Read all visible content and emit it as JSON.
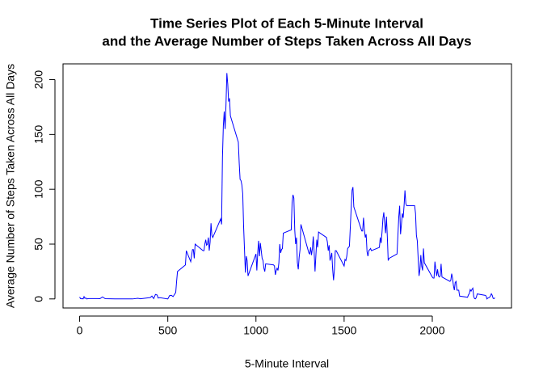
{
  "chart_data": {
    "type": "line",
    "title_lines": [
      "Time Series Plot of Each 5-Minute Interval",
      "and the Average Number of Steps Taken Across All Days"
    ],
    "x_label": "5-Minute Interval",
    "y_label": "Average Number of Steps Taken Across All Days",
    "xlim": [
      -94.2,
      2449.2
    ],
    "ylim": [
      -8.25,
      214.4
    ],
    "xticks": [
      0,
      500,
      1000,
      1500,
      2000
    ],
    "yticks": [
      0,
      50,
      100,
      150,
      200
    ],
    "x": [
      0,
      5,
      10,
      15,
      20,
      25,
      30,
      35,
      40,
      50,
      100,
      115,
      130,
      145,
      200,
      230,
      300,
      330,
      345,
      400,
      410,
      420,
      430,
      440,
      445,
      455,
      500,
      510,
      520,
      530,
      545,
      550,
      555,
      600,
      605,
      610,
      615,
      620,
      625,
      630,
      640,
      645,
      650,
      655,
      700,
      705,
      710,
      715,
      720,
      725,
      730,
      735,
      740,
      745,
      750,
      755,
      800,
      805,
      810,
      815,
      820,
      825,
      830,
      835,
      840,
      845,
      850,
      855,
      900,
      905,
      910,
      915,
      920,
      925,
      930,
      935,
      940,
      945,
      950,
      955,
      1000,
      1005,
      1010,
      1015,
      1020,
      1025,
      1030,
      1035,
      1040,
      1045,
      1050,
      1055,
      1100,
      1105,
      1110,
      1115,
      1120,
      1125,
      1130,
      1135,
      1140,
      1145,
      1150,
      1155,
      1200,
      1205,
      1210,
      1215,
      1220,
      1225,
      1230,
      1235,
      1240,
      1245,
      1250,
      1255,
      1300,
      1305,
      1310,
      1315,
      1320,
      1325,
      1330,
      1335,
      1340,
      1345,
      1350,
      1355,
      1400,
      1405,
      1410,
      1415,
      1420,
      1425,
      1430,
      1435,
      1440,
      1445,
      1450,
      1455,
      1500,
      1505,
      1510,
      1515,
      1520,
      1525,
      1530,
      1535,
      1540,
      1545,
      1550,
      1555,
      1600,
      1605,
      1610,
      1615,
      1620,
      1625,
      1630,
      1635,
      1640,
      1645,
      1650,
      1655,
      1700,
      1705,
      1710,
      1715,
      1720,
      1725,
      1730,
      1735,
      1740,
      1745,
      1750,
      1755,
      1800,
      1805,
      1810,
      1815,
      1820,
      1825,
      1830,
      1835,
      1840,
      1845,
      1850,
      1855,
      1900,
      1905,
      1910,
      1915,
      1920,
      1925,
      1930,
      1935,
      1940,
      1945,
      1950,
      1955,
      2000,
      2005,
      2010,
      2015,
      2020,
      2025,
      2030,
      2035,
      2040,
      2045,
      2050,
      2055,
      2100,
      2105,
      2110,
      2115,
      2120,
      2125,
      2130,
      2135,
      2140,
      2145,
      2150,
      2155,
      2200,
      2205,
      2210,
      2215,
      2220,
      2225,
      2230,
      2235,
      2240,
      2245,
      2250,
      2255,
      2300,
      2305,
      2310,
      2315,
      2320,
      2325,
      2330,
      2335,
      2340,
      2345,
      2350,
      2355
    ],
    "series": [
      {
        "color": "#0000ff",
        "values": [
          1.7,
          0.3,
          0.1,
          0.2,
          0.1,
          2.1,
          0.5,
          0.9,
          0,
          0.3,
          0.3,
          0.2,
          1.8,
          0.2,
          0,
          0,
          0,
          0.6,
          0.1,
          1.2,
          2.6,
          0.3,
          4.1,
          3.5,
          0.8,
          1.1,
          0,
          3,
          3.3,
          2.1,
          5.9,
          16,
          25,
          31,
          44,
          42,
          40,
          38,
          36,
          34,
          45,
          45,
          37,
          50,
          44,
          44,
          50,
          54,
          49,
          50,
          56,
          44,
          52,
          69,
          58,
          56,
          73,
          68,
          129,
          158,
          171,
          155,
          177,
          206,
          196,
          180,
          183,
          167,
          143,
          124,
          109,
          108,
          104,
          96,
          66,
          45,
          24,
          39,
          35,
          21,
          41,
          26,
          42,
          53,
          39,
          51,
          44,
          37,
          35,
          28,
          25,
          32,
          31,
          30,
          22,
          26,
          28,
          26,
          33,
          50,
          42,
          45,
          46,
          60,
          63,
          88,
          95,
          92,
          63,
          50,
          56,
          33,
          27,
          38,
          45,
          68,
          42,
          41,
          47,
          40,
          46,
          57,
          43,
          25,
          40,
          54,
          47,
          61,
          56,
          52,
          44,
          49,
          35,
          38,
          42,
          27,
          17,
          27,
          44,
          44,
          30,
          36,
          35,
          39,
          46,
          47,
          48,
          65,
          83,
          99,
          102,
          84,
          62,
          62,
          74,
          63,
          56,
          59,
          43,
          39,
          44,
          45,
          46,
          44,
          47,
          56,
          51,
          61,
          73,
          79,
          69,
          60,
          75,
          57,
          35,
          37,
          41,
          58,
          75,
          85,
          59,
          68,
          78,
          74,
          85,
          99,
          87,
          85,
          85,
          78,
          58,
          53,
          37,
          21,
          27,
          40,
          30,
          26,
          46,
          33,
          20,
          19,
          19,
          34,
          27,
          21,
          27,
          21,
          20,
          21,
          32,
          20,
          16,
          17,
          23,
          19,
          12,
          8,
          15,
          16,
          8,
          8,
          8,
          2.6,
          1.5,
          3.7,
          4.8,
          8.5,
          7.1,
          8.7,
          9.8,
          2.2,
          0.3,
          0.1,
          1.6,
          4.6,
          3.3,
          2.8,
          0,
          0.8,
          1,
          1.6,
          2.6,
          4.7,
          3.3,
          0.6,
          0.2,
          1.1
        ]
      }
    ]
  }
}
